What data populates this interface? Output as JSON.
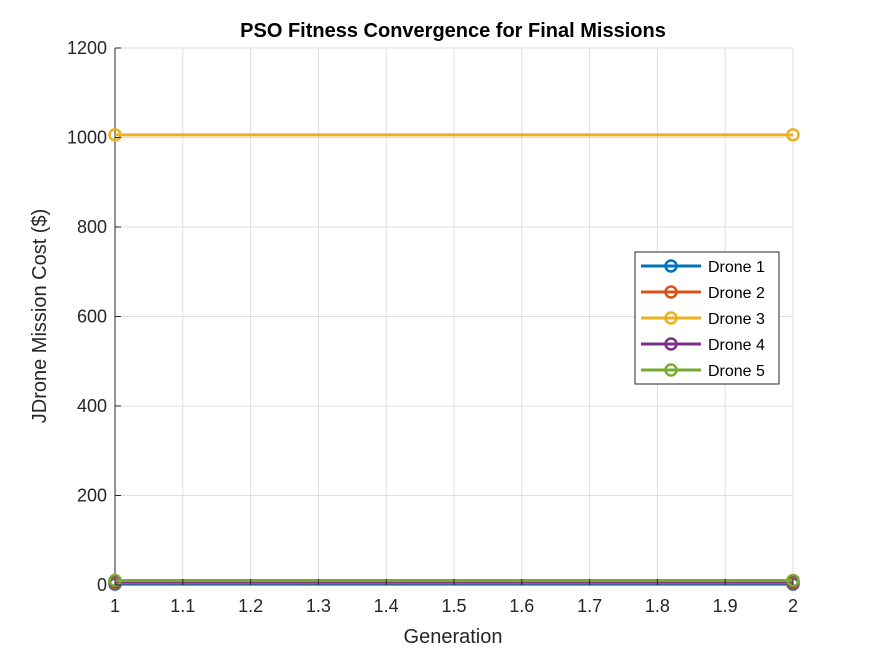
{
  "chart_data": {
    "type": "line",
    "title": "PSO Fitness Convergence for Final Missions",
    "xlabel": "Generation",
    "ylabel": "JDrone Mission Cost ($)",
    "xlim": [
      1,
      2
    ],
    "ylim": [
      0,
      1200
    ],
    "x_ticks": [
      1,
      1.1,
      1.2,
      1.3,
      1.4,
      1.5,
      1.6,
      1.7,
      1.8,
      1.9,
      2
    ],
    "x_tick_labels": [
      "1",
      "1.1",
      "1.2",
      "1.3",
      "1.4",
      "1.5",
      "1.6",
      "1.7",
      "1.8",
      "1.9",
      "2"
    ],
    "y_ticks": [
      0,
      200,
      400,
      600,
      800,
      1000,
      1200
    ],
    "y_tick_labels": [
      "0",
      "200",
      "400",
      "600",
      "800",
      "1000",
      "1200"
    ],
    "grid": true,
    "legend_position": "right",
    "x": [
      1,
      2
    ],
    "series": [
      {
        "name": "Drone 1",
        "values": [
          2,
          2
        ],
        "color": "#0072BD"
      },
      {
        "name": "Drone 2",
        "values": [
          5,
          5
        ],
        "color": "#D95319"
      },
      {
        "name": "Drone 3",
        "values": [
          1006,
          1006
        ],
        "color": "#EDB120"
      },
      {
        "name": "Drone 4",
        "values": [
          8,
          8
        ],
        "color": "#7E2F8E"
      },
      {
        "name": "Drone 5",
        "values": [
          10,
          10
        ],
        "color": "#77AC30"
      }
    ]
  }
}
